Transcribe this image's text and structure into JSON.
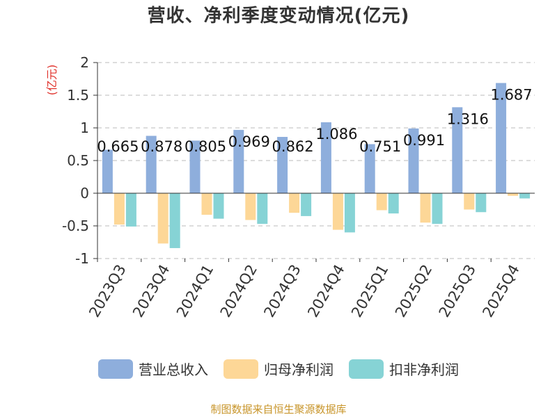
{
  "title": "营收、净利季度变动情况(亿元)",
  "source": "制图数据来自恒生聚源数据库",
  "chart_data": {
    "type": "bar",
    "title": "营收、净利季度变动情况(亿元)",
    "ylabel": "(亿元)",
    "ylim": [
      -1,
      2
    ],
    "yticks": [
      "2",
      "1.5",
      "1",
      "0.5",
      "0",
      "-0.5",
      "-1"
    ],
    "grid": true,
    "legend_position": "bottom",
    "categories": [
      "2023Q3",
      "2023Q4",
      "2024Q1",
      "2024Q2",
      "2024Q3",
      "2024Q4",
      "2025Q1",
      "2025Q2",
      "2025Q3",
      "2025Q4"
    ],
    "series": [
      {
        "name": "营业总收入",
        "color": "#8eaedc",
        "values": [
          0.665,
          0.878,
          0.805,
          0.969,
          0.862,
          1.086,
          0.751,
          0.991,
          1.316,
          1.687
        ]
      },
      {
        "name": "归母净利润",
        "color": "#fdd797",
        "values": [
          -0.48,
          -0.77,
          -0.33,
          -0.41,
          -0.3,
          -0.56,
          -0.26,
          -0.45,
          -0.25,
          -0.04
        ]
      },
      {
        "name": "扣非净利润",
        "color": "#86d3d5",
        "values": [
          -0.51,
          -0.84,
          -0.39,
          -0.47,
          -0.35,
          -0.6,
          -0.31,
          -0.47,
          -0.29,
          -0.08
        ]
      }
    ],
    "data_labels": [
      "0.665",
      "0.878",
      "0.805",
      "0.969",
      "0.862",
      "1.086",
      "0.751",
      "0.991",
      "1.316",
      "1.687"
    ]
  }
}
